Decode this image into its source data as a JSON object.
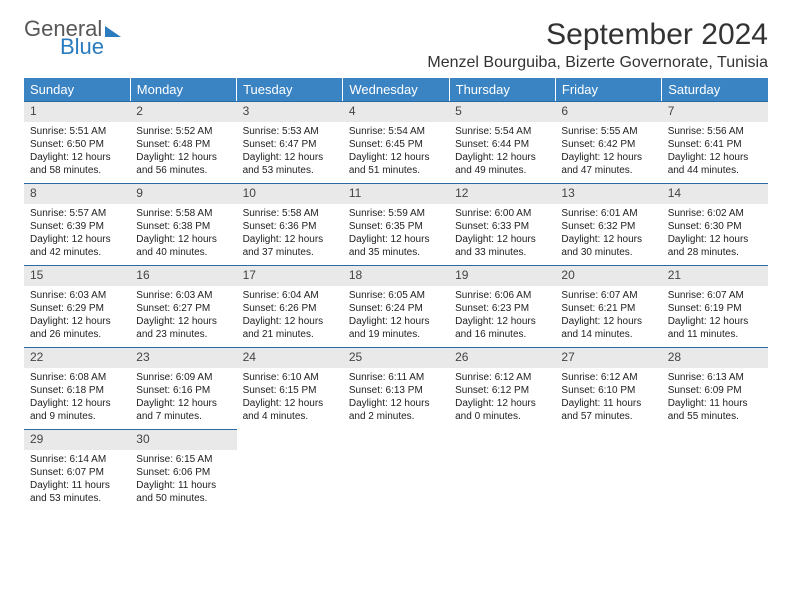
{
  "logo": {
    "line1": "General",
    "line2": "Blue"
  },
  "title": "September 2024",
  "location": "Menzel Bourguiba, Bizerte Governorate, Tunisia",
  "colors": {
    "header_bg": "#3b84c4",
    "header_text": "#ffffff",
    "daynum_bg": "#e9e9e9",
    "row_divider": "#2a6aa2",
    "logo_gray": "#585858",
    "logo_blue": "#2b7bbf",
    "page_bg": "#ffffff"
  },
  "weekdays": [
    "Sunday",
    "Monday",
    "Tuesday",
    "Wednesday",
    "Thursday",
    "Friday",
    "Saturday"
  ],
  "days": [
    {
      "n": "1",
      "sr": "5:51 AM",
      "ss": "6:50 PM",
      "d1": "12 hours",
      "d2": "and 58 minutes."
    },
    {
      "n": "2",
      "sr": "5:52 AM",
      "ss": "6:48 PM",
      "d1": "12 hours",
      "d2": "and 56 minutes."
    },
    {
      "n": "3",
      "sr": "5:53 AM",
      "ss": "6:47 PM",
      "d1": "12 hours",
      "d2": "and 53 minutes."
    },
    {
      "n": "4",
      "sr": "5:54 AM",
      "ss": "6:45 PM",
      "d1": "12 hours",
      "d2": "and 51 minutes."
    },
    {
      "n": "5",
      "sr": "5:54 AM",
      "ss": "6:44 PM",
      "d1": "12 hours",
      "d2": "and 49 minutes."
    },
    {
      "n": "6",
      "sr": "5:55 AM",
      "ss": "6:42 PM",
      "d1": "12 hours",
      "d2": "and 47 minutes."
    },
    {
      "n": "7",
      "sr": "5:56 AM",
      "ss": "6:41 PM",
      "d1": "12 hours",
      "d2": "and 44 minutes."
    },
    {
      "n": "8",
      "sr": "5:57 AM",
      "ss": "6:39 PM",
      "d1": "12 hours",
      "d2": "and 42 minutes."
    },
    {
      "n": "9",
      "sr": "5:58 AM",
      "ss": "6:38 PM",
      "d1": "12 hours",
      "d2": "and 40 minutes."
    },
    {
      "n": "10",
      "sr": "5:58 AM",
      "ss": "6:36 PM",
      "d1": "12 hours",
      "d2": "and 37 minutes."
    },
    {
      "n": "11",
      "sr": "5:59 AM",
      "ss": "6:35 PM",
      "d1": "12 hours",
      "d2": "and 35 minutes."
    },
    {
      "n": "12",
      "sr": "6:00 AM",
      "ss": "6:33 PM",
      "d1": "12 hours",
      "d2": "and 33 minutes."
    },
    {
      "n": "13",
      "sr": "6:01 AM",
      "ss": "6:32 PM",
      "d1": "12 hours",
      "d2": "and 30 minutes."
    },
    {
      "n": "14",
      "sr": "6:02 AM",
      "ss": "6:30 PM",
      "d1": "12 hours",
      "d2": "and 28 minutes."
    },
    {
      "n": "15",
      "sr": "6:03 AM",
      "ss": "6:29 PM",
      "d1": "12 hours",
      "d2": "and 26 minutes."
    },
    {
      "n": "16",
      "sr": "6:03 AM",
      "ss": "6:27 PM",
      "d1": "12 hours",
      "d2": "and 23 minutes."
    },
    {
      "n": "17",
      "sr": "6:04 AM",
      "ss": "6:26 PM",
      "d1": "12 hours",
      "d2": "and 21 minutes."
    },
    {
      "n": "18",
      "sr": "6:05 AM",
      "ss": "6:24 PM",
      "d1": "12 hours",
      "d2": "and 19 minutes."
    },
    {
      "n": "19",
      "sr": "6:06 AM",
      "ss": "6:23 PM",
      "d1": "12 hours",
      "d2": "and 16 minutes."
    },
    {
      "n": "20",
      "sr": "6:07 AM",
      "ss": "6:21 PM",
      "d1": "12 hours",
      "d2": "and 14 minutes."
    },
    {
      "n": "21",
      "sr": "6:07 AM",
      "ss": "6:19 PM",
      "d1": "12 hours",
      "d2": "and 11 minutes."
    },
    {
      "n": "22",
      "sr": "6:08 AM",
      "ss": "6:18 PM",
      "d1": "12 hours",
      "d2": "and 9 minutes."
    },
    {
      "n": "23",
      "sr": "6:09 AM",
      "ss": "6:16 PM",
      "d1": "12 hours",
      "d2": "and 7 minutes."
    },
    {
      "n": "24",
      "sr": "6:10 AM",
      "ss": "6:15 PM",
      "d1": "12 hours",
      "d2": "and 4 minutes."
    },
    {
      "n": "25",
      "sr": "6:11 AM",
      "ss": "6:13 PM",
      "d1": "12 hours",
      "d2": "and 2 minutes."
    },
    {
      "n": "26",
      "sr": "6:12 AM",
      "ss": "6:12 PM",
      "d1": "12 hours",
      "d2": "and 0 minutes."
    },
    {
      "n": "27",
      "sr": "6:12 AM",
      "ss": "6:10 PM",
      "d1": "11 hours",
      "d2": "and 57 minutes."
    },
    {
      "n": "28",
      "sr": "6:13 AM",
      "ss": "6:09 PM",
      "d1": "11 hours",
      "d2": "and 55 minutes."
    },
    {
      "n": "29",
      "sr": "6:14 AM",
      "ss": "6:07 PM",
      "d1": "11 hours",
      "d2": "and 53 minutes."
    },
    {
      "n": "30",
      "sr": "6:15 AM",
      "ss": "6:06 PM",
      "d1": "11 hours",
      "d2": "and 50 minutes."
    }
  ],
  "labels": {
    "sunrise": "Sunrise:",
    "sunset": "Sunset:",
    "daylight": "Daylight:"
  }
}
